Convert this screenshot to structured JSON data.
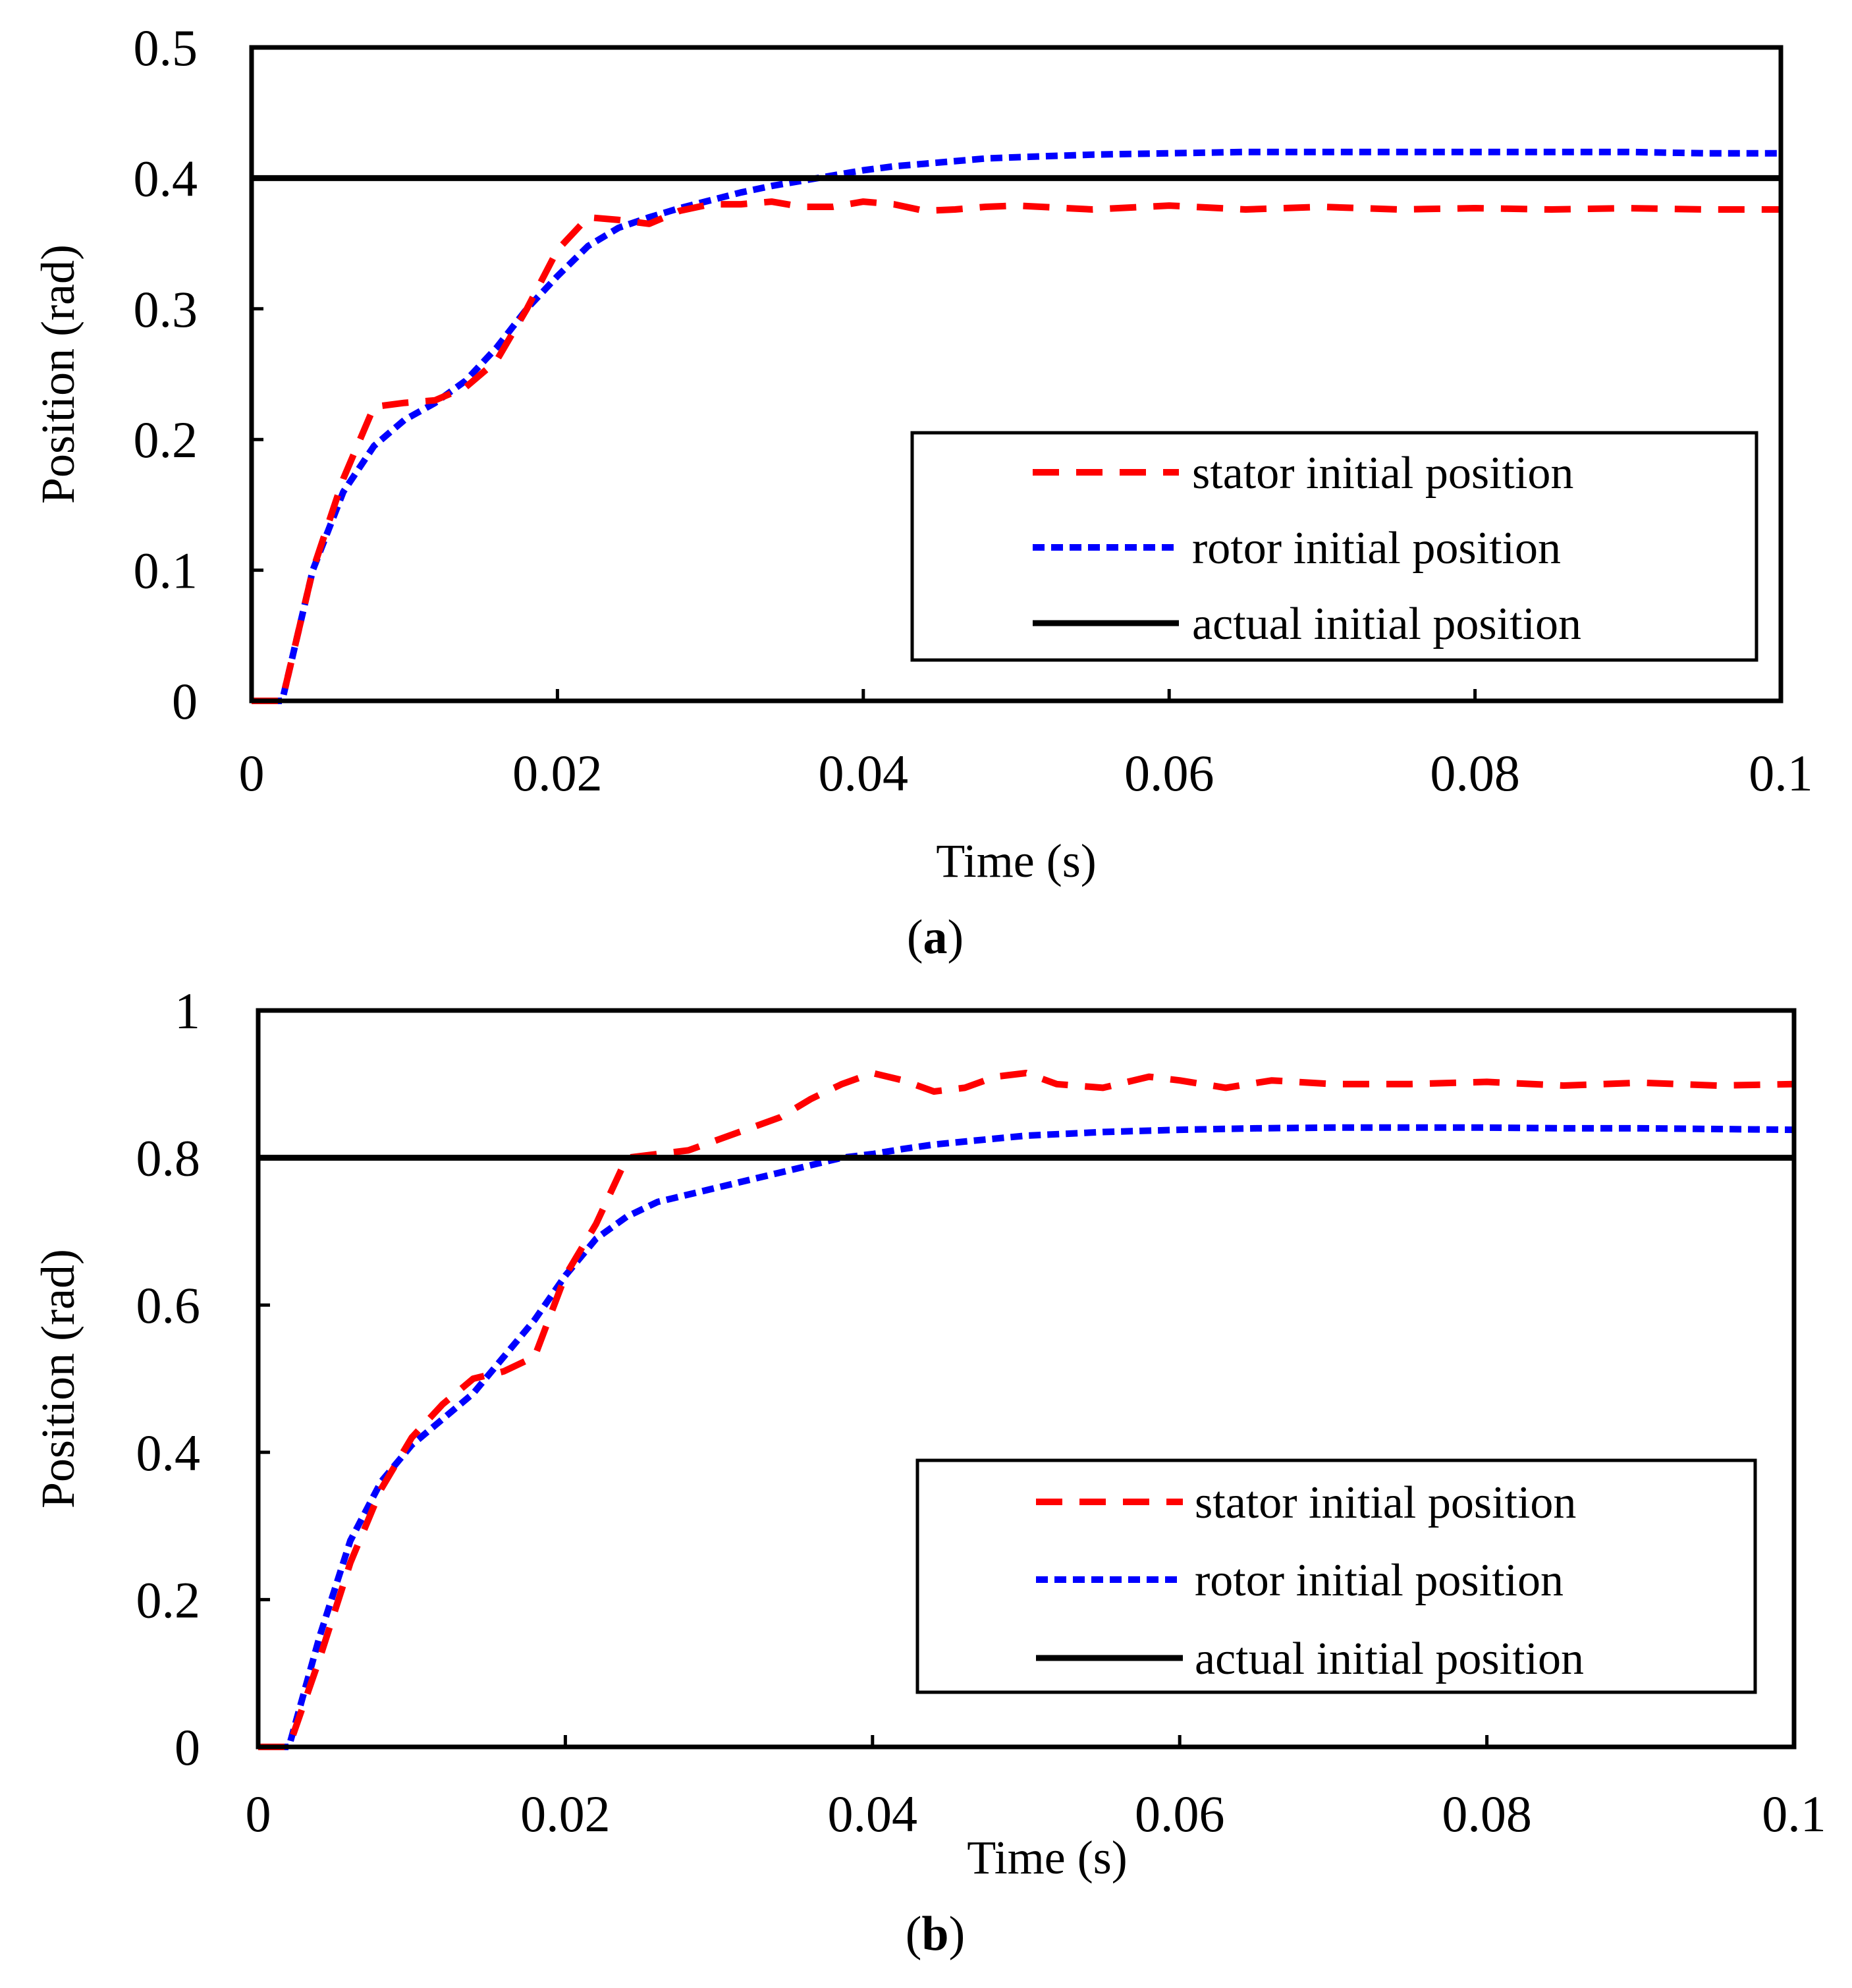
{
  "colors": {
    "stator": "#ff0000",
    "rotor": "#0000ff",
    "actual": "#000000",
    "frame": "#000000",
    "background": "#ffffff"
  },
  "chart_data": [
    {
      "type": "line",
      "panel": "a",
      "caption_open": "(",
      "caption_letter": "a",
      "caption_close": ")",
      "xlabel": "Time (s)",
      "ylabel": "Position (rad)",
      "xlim": [
        0,
        0.1
      ],
      "ylim": [
        0,
        0.5
      ],
      "x_ticks": [
        0,
        0.02,
        0.04,
        0.06,
        0.08,
        0.1
      ],
      "x_tick_labels": [
        "0",
        "0.02",
        "0.04",
        "0.06",
        "0.08",
        "0.1"
      ],
      "y_ticks": [
        0,
        0.1,
        0.2,
        0.3,
        0.4,
        0.5
      ],
      "y_tick_labels": [
        "0",
        "0.1",
        "0.2",
        "0.3",
        "0.4",
        "0.5"
      ],
      "grid": false,
      "legend_position": "lower-right",
      "series": [
        {
          "name": "stator initial position",
          "style": "dashed",
          "color_key": "stator",
          "x": [
            0,
            0.002,
            0.004,
            0.006,
            0.008,
            0.01,
            0.012,
            0.014,
            0.016,
            0.018,
            0.02,
            0.022,
            0.024,
            0.026,
            0.028,
            0.03,
            0.032,
            0.034,
            0.036,
            0.038,
            0.04,
            0.042,
            0.044,
            0.046,
            0.048,
            0.05,
            0.055,
            0.06,
            0.065,
            0.07,
            0.075,
            0.08,
            0.085,
            0.09,
            0.095,
            0.1
          ],
          "y": [
            0,
            0,
            0.1,
            0.17,
            0.225,
            0.228,
            0.23,
            0.24,
            0.26,
            0.3,
            0.345,
            0.37,
            0.368,
            0.365,
            0.375,
            0.38,
            0.38,
            0.382,
            0.378,
            0.378,
            0.382,
            0.38,
            0.375,
            0.376,
            0.378,
            0.379,
            0.376,
            0.379,
            0.376,
            0.378,
            0.376,
            0.377,
            0.376,
            0.377,
            0.376,
            0.376
          ]
        },
        {
          "name": "rotor initial position",
          "style": "dotted",
          "color_key": "rotor",
          "x": [
            0,
            0.002,
            0.004,
            0.006,
            0.008,
            0.01,
            0.012,
            0.014,
            0.016,
            0.018,
            0.02,
            0.022,
            0.024,
            0.026,
            0.028,
            0.03,
            0.032,
            0.034,
            0.036,
            0.038,
            0.04,
            0.042,
            0.044,
            0.046,
            0.048,
            0.05,
            0.055,
            0.06,
            0.065,
            0.07,
            0.075,
            0.08,
            0.085,
            0.09,
            0.095,
            0.1
          ],
          "y": [
            0,
            0,
            0.1,
            0.16,
            0.195,
            0.215,
            0.228,
            0.245,
            0.27,
            0.3,
            0.325,
            0.348,
            0.362,
            0.37,
            0.377,
            0.383,
            0.389,
            0.394,
            0.398,
            0.402,
            0.406,
            0.409,
            0.411,
            0.413,
            0.415,
            0.416,
            0.418,
            0.419,
            0.42,
            0.42,
            0.42,
            0.42,
            0.42,
            0.42,
            0.419,
            0.419
          ]
        },
        {
          "name": "actual initial position",
          "style": "solid",
          "color_key": "actual",
          "x": [
            0,
            0.1
          ],
          "y": [
            0.4,
            0.4
          ]
        }
      ]
    },
    {
      "type": "line",
      "panel": "b",
      "caption_open": "(",
      "caption_letter": "b",
      "caption_close": ")",
      "xlabel": "Time  (s)",
      "ylabel": "Position (rad)",
      "xlim": [
        0,
        0.1
      ],
      "ylim": [
        0,
        1
      ],
      "x_ticks": [
        0,
        0.02,
        0.04,
        0.06,
        0.08,
        0.1
      ],
      "x_tick_labels": [
        "0",
        "0.02",
        "0.04",
        "0.06",
        "0.08",
        "0.1"
      ],
      "y_ticks": [
        0,
        0.2,
        0.4,
        0.6,
        0.8,
        1
      ],
      "y_tick_labels": [
        "0",
        "0.2",
        "0.4",
        "0.6",
        "0.8",
        "1"
      ],
      "grid": false,
      "legend_position": "lower-right",
      "series": [
        {
          "name": "stator initial position",
          "style": "dashed",
          "color_key": "stator",
          "x": [
            0,
            0.002,
            0.004,
            0.006,
            0.008,
            0.01,
            0.012,
            0.014,
            0.016,
            0.018,
            0.02,
            0.022,
            0.024,
            0.026,
            0.028,
            0.03,
            0.032,
            0.034,
            0.036,
            0.038,
            0.04,
            0.042,
            0.044,
            0.046,
            0.048,
            0.05,
            0.052,
            0.055,
            0.058,
            0.06,
            0.063,
            0.066,
            0.07,
            0.075,
            0.08,
            0.085,
            0.09,
            0.095,
            0.1
          ],
          "y": [
            0,
            0,
            0.12,
            0.25,
            0.35,
            0.42,
            0.465,
            0.5,
            0.51,
            0.53,
            0.64,
            0.71,
            0.8,
            0.805,
            0.81,
            0.825,
            0.84,
            0.855,
            0.88,
            0.9,
            0.915,
            0.905,
            0.89,
            0.895,
            0.91,
            0.915,
            0.9,
            0.895,
            0.91,
            0.905,
            0.895,
            0.905,
            0.9,
            0.9,
            0.903,
            0.898,
            0.902,
            0.898,
            0.9
          ]
        },
        {
          "name": "rotor initial position",
          "style": "dotted",
          "color_key": "rotor",
          "x": [
            0,
            0.002,
            0.004,
            0.006,
            0.008,
            0.01,
            0.012,
            0.014,
            0.016,
            0.018,
            0.02,
            0.022,
            0.024,
            0.026,
            0.028,
            0.03,
            0.032,
            0.034,
            0.036,
            0.038,
            0.04,
            0.042,
            0.044,
            0.046,
            0.048,
            0.05,
            0.055,
            0.06,
            0.065,
            0.07,
            0.075,
            0.08,
            0.085,
            0.09,
            0.095,
            0.1
          ],
          "y": [
            0,
            0,
            0.15,
            0.28,
            0.36,
            0.41,
            0.445,
            0.48,
            0.53,
            0.58,
            0.64,
            0.69,
            0.72,
            0.74,
            0.75,
            0.76,
            0.77,
            0.78,
            0.79,
            0.8,
            0.805,
            0.812,
            0.818,
            0.822,
            0.826,
            0.83,
            0.835,
            0.838,
            0.84,
            0.841,
            0.841,
            0.841,
            0.84,
            0.84,
            0.839,
            0.838
          ]
        },
        {
          "name": "actual initial position",
          "style": "solid",
          "color_key": "actual",
          "x": [
            0,
            0.1
          ],
          "y": [
            0.8,
            0.8
          ]
        }
      ]
    }
  ]
}
